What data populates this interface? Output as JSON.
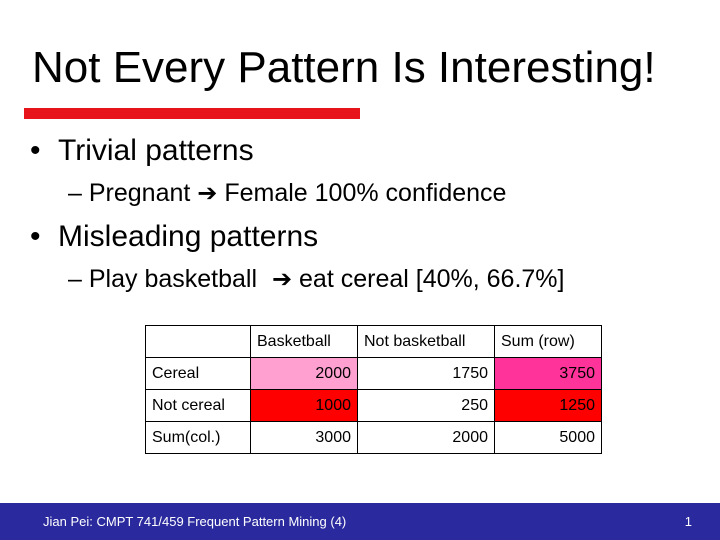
{
  "slide": {
    "title": "Not Every Pattern Is Interesting!",
    "bullets": [
      {
        "text": "Trivial patterns",
        "sub": {
          "left": "Pregnant",
          "right": "Female 100% confidence"
        }
      },
      {
        "text": "Misleading patterns",
        "sub": {
          "left": "Play basketball",
          "right": "eat cereal [40%, 66.7%]"
        }
      }
    ],
    "bullet_glyph": "•",
    "dash_glyph": "–",
    "arrow_glyph": "➔"
  },
  "table": {
    "header": [
      "",
      "Basketball",
      "Not basketball",
      "Sum (row)"
    ],
    "rows": [
      [
        "Cereal",
        "2000",
        "1750",
        "3750"
      ],
      [
        "Not cereal",
        "1000",
        "250",
        "1250"
      ],
      [
        "Sum(col.)",
        "3000",
        "2000",
        "5000"
      ]
    ],
    "highlight_colors": {
      "light_pink": "#ffa0d0",
      "magenta": "#ff3399",
      "red": "#ff0000"
    }
  },
  "footer": {
    "left": "Jian Pei: CMPT 741/459 Frequent Pattern Mining (4)",
    "page_number": "1"
  },
  "colors": {
    "title_rule": "#e8141c",
    "footer_bg": "#2a2a9e"
  }
}
